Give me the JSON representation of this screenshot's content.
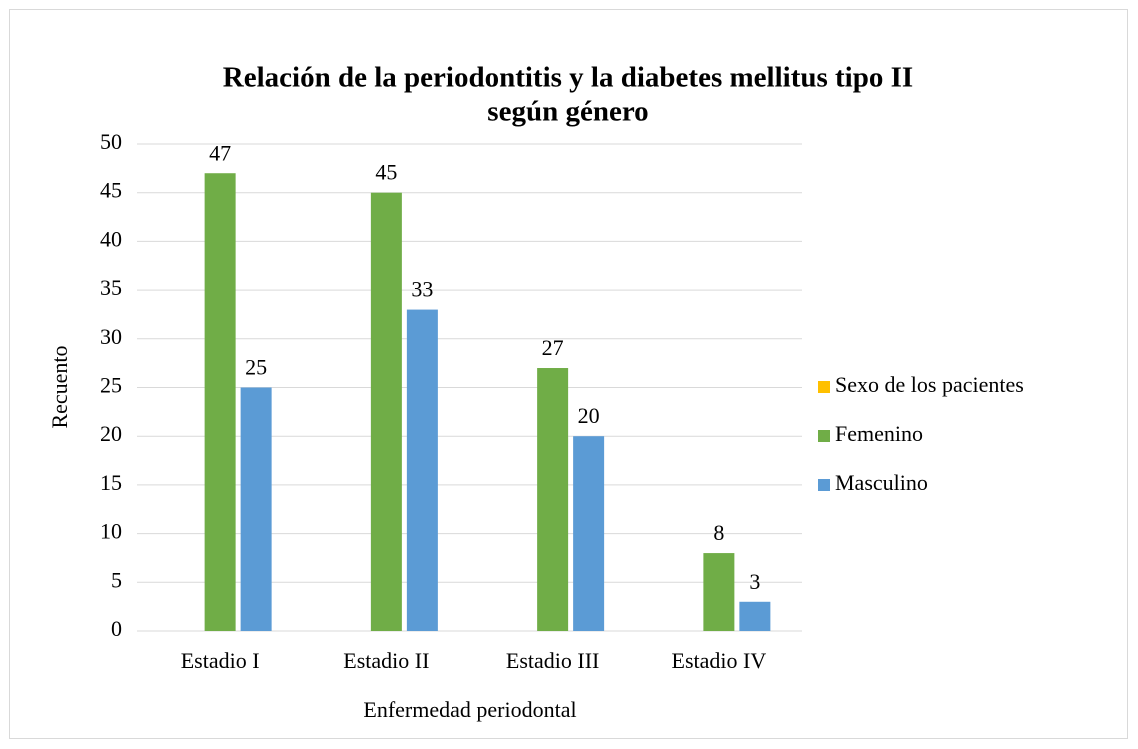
{
  "chart_data": {
    "type": "bar",
    "title": "Relación de la periodontitis y la diabetes mellitus tipo II",
    "subtitle": "según género",
    "x_label": "Enfermedad periodontal",
    "y_label": "Recuento",
    "categories": [
      "Estadio I",
      "Estadio II",
      "Estadio III",
      "Estadio IV"
    ],
    "series": [
      {
        "name": "Sexo de los pacientes",
        "color": "#ffc000",
        "values": [
          null,
          null,
          null,
          null
        ]
      },
      {
        "name": "Femenino",
        "color": "#70ad47",
        "values": [
          47,
          45,
          27,
          8
        ]
      },
      {
        "name": "Masculino",
        "color": "#5b9bd5",
        "values": [
          25,
          33,
          20,
          3
        ]
      }
    ],
    "ylim": [
      0,
      50
    ],
    "yticks": [
      0,
      5,
      10,
      15,
      20,
      25,
      30,
      35,
      40,
      45,
      50
    ],
    "grid": true,
    "legend": "right"
  }
}
